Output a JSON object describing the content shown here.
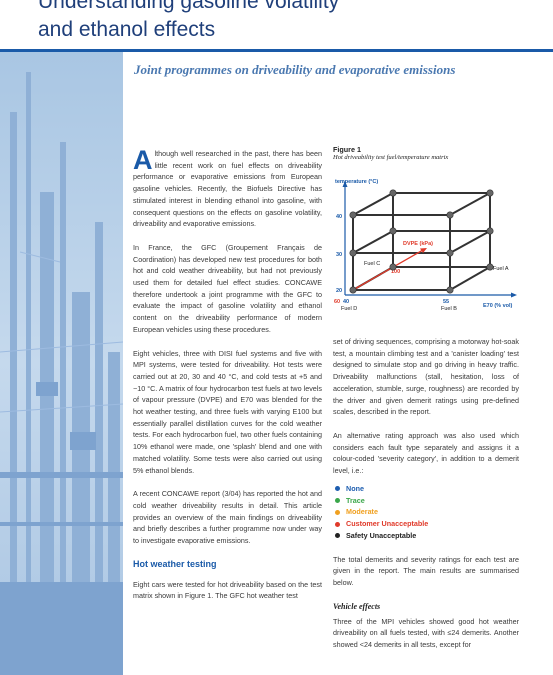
{
  "header": {
    "title_line1": "Understanding gasoline volatility",
    "title_line2": "and ethanol effects"
  },
  "subtitle": "Joint programmes on driveability and evaporative emissions",
  "col1": {
    "p1_dropcap": "A",
    "p1_rest": "lthough well researched in the past, there has been little recent work on fuel effects on driveability performance or evaporative emissions from European gasoline vehicles. Recently, the Biofuels Directive has stimulated interest in blending ethanol into gasoline, with consequent questions on the effects on gasoline volatility, driveability and evaporative emissions.",
    "p2": "In France, the GFC (Groupement Français de Coordination) has developed new test procedures for both hot and cold weather driveability, but had not previously used them for detailed fuel effect studies. CONCAWE therefore undertook a joint programme with the GFC to evaluate the impact of gasoline volatility and ethanol content on the driveability performance of modern European vehicles using these procedures.",
    "p3": "Eight vehicles, three with DISI fuel systems and five with MPI systems, were tested for driveability. Hot tests were carried out at 20, 30 and 40 °C, and cold tests at +5 and −10 °C. A matrix of four hydrocarbon test fuels at two levels of vapour pressure (DVPE) and E70 was blended for the hot weather testing, and three fuels with varying E100 but essentially parallel distillation curves for the cold weather tests. For each hydrocarbon fuel, two other fuels containing 10% ethanol were made, one 'splash' blend and one with matched volatility. Some tests were also carried out using 5% ethanol blends.",
    "p4": "A recent CONCAWE report (3/04) has reported the hot and cold weather driveability results in detail. This article provides an overview of the main findings on driveability and briefly describes a further programme now under way to investigate evaporative emissions.",
    "section_heading": "Hot weather testing",
    "p5": "Eight cars were tested for hot driveability based on the test matrix shown in Figure 1. The GFC hot weather test"
  },
  "figure": {
    "label": "Figure 1",
    "caption": "Hot driveability test fuel/temperature matrix",
    "y_axis_label": "temperature (°C)",
    "x_axis_label": "E70 (% vol)",
    "depth_axis_label": "DVPE (kPa)",
    "y_ticks": [
      "40",
      "30",
      "20"
    ],
    "x_ticks": [
      "40",
      "55"
    ],
    "depth_ticks": [
      "60",
      "100"
    ],
    "fuels": [
      "Fuel A",
      "Fuel B",
      "Fuel C",
      "Fuel D"
    ],
    "accent_color": "#e03a2a"
  },
  "col2": {
    "p1": "set of driving sequences, comprising a motorway hot-soak test, a mountain climbing test and a 'canister loading' test designed to simulate stop and go driving in heavy traffic. Driveability malfunctions (stall, hesitation, loss of acceleration, stumble, surge, roughness) are recorded by the driver and given demerit ratings using pre-defined scales, described in the report.",
    "p2": "An alternative rating approach was also used which considers each fault type separately and assigns it a colour-coded 'severity category', in addition to a demerit level, i.e.:",
    "severity": [
      {
        "label": "None",
        "color": "#1e5eb0"
      },
      {
        "label": "Trace",
        "color": "#3aa64a"
      },
      {
        "label": "Moderate",
        "color": "#f0a020"
      },
      {
        "label": "Customer Unacceptable",
        "color": "#e03a2a"
      },
      {
        "label": "Safety Unacceptable",
        "color": "#222222"
      }
    ],
    "p3": "The total demerits and severity ratings for each test are given in the report. The main results are summarised below.",
    "sub_heading": "Vehicle effects",
    "p4": "Three of the MPI vehicles showed good hot weather driveability on all fuels tested, with ≤24 demerits. Another showed <24 demerits in all tests, except for"
  }
}
